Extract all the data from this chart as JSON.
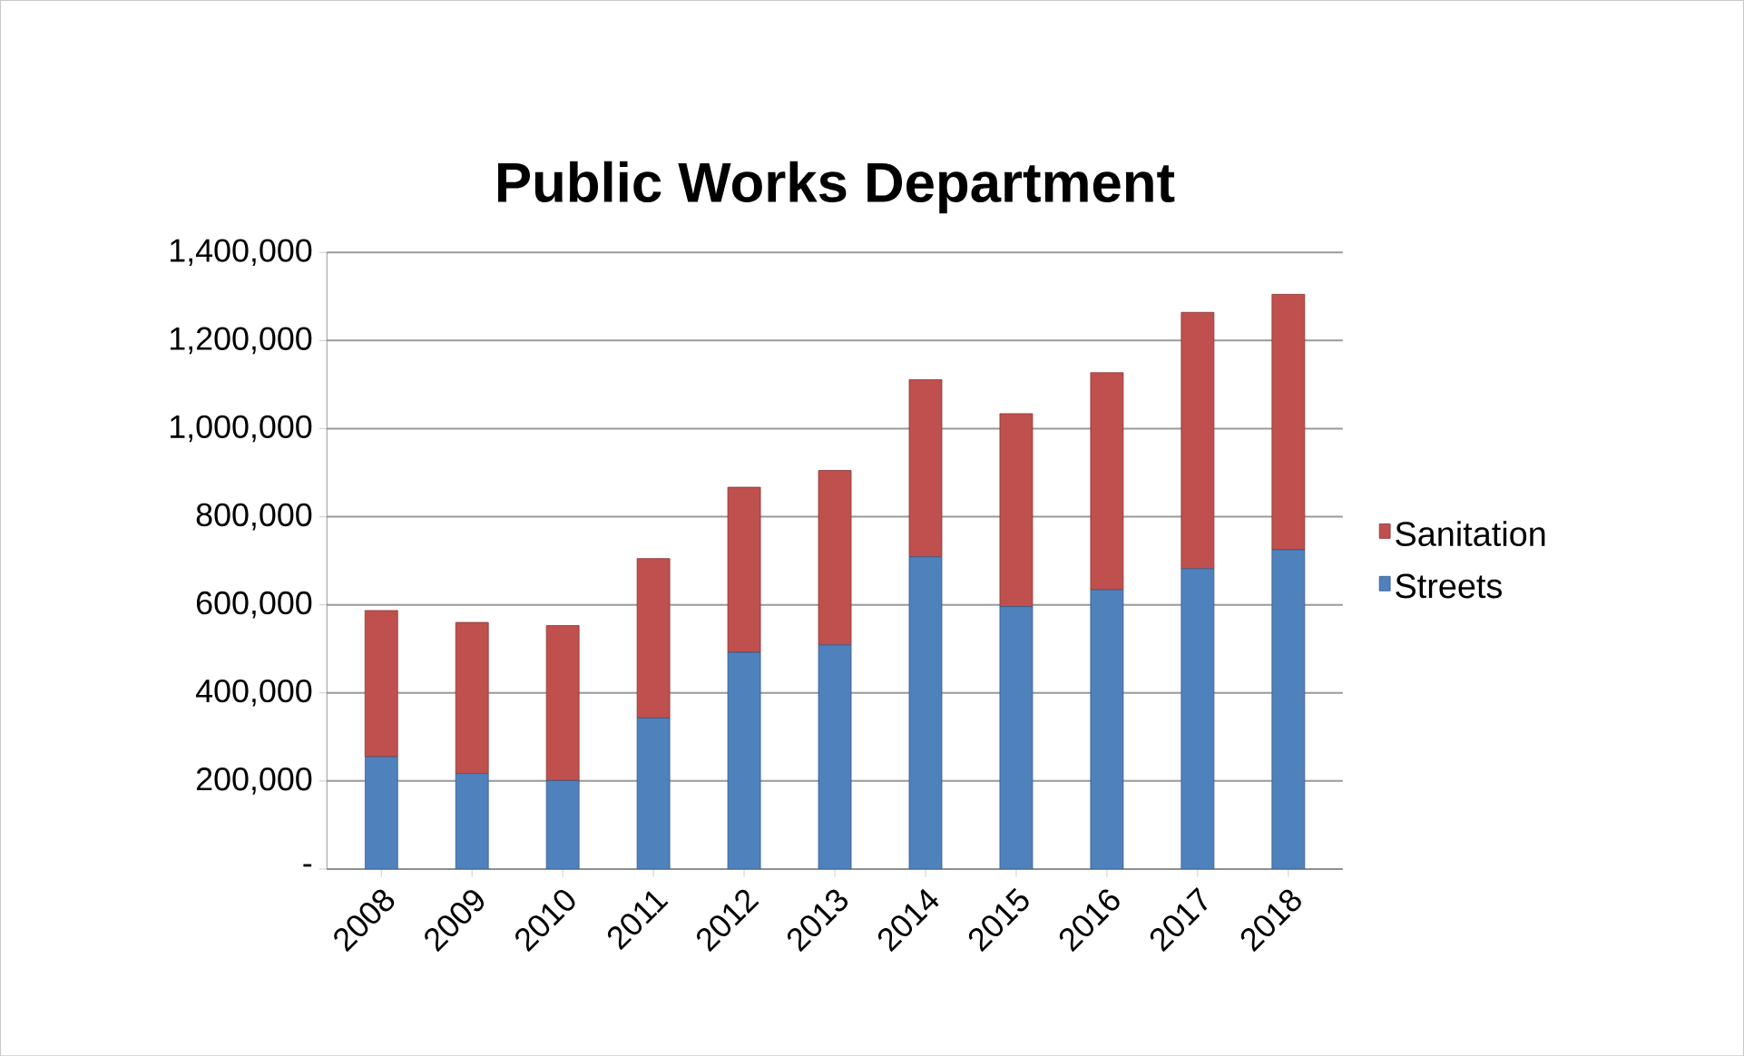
{
  "chart_data": {
    "type": "bar",
    "title": "Public Works Department",
    "stacked": true,
    "categories": [
      "2008",
      "2009",
      "2010",
      "2011",
      "2012",
      "2013",
      "2014",
      "2015",
      "2016",
      "2017",
      "2018"
    ],
    "series": [
      {
        "name": "Streets",
        "color": "#4f81bd",
        "values": [
          255000,
          217000,
          201000,
          343000,
          492000,
          509000,
          709000,
          596000,
          634000,
          682000,
          725000
        ]
      },
      {
        "name": "Sanitation",
        "color": "#c0504d",
        "values": [
          332000,
          343000,
          352000,
          362000,
          375000,
          396000,
          402000,
          438000,
          493000,
          582000,
          580000
        ]
      }
    ],
    "ylim": [
      0,
      1400000
    ],
    "yticks": [
      {
        "value": 0,
        "label": "-"
      },
      {
        "value": 200000,
        "label": "200,000"
      },
      {
        "value": 400000,
        "label": "400,000"
      },
      {
        "value": 600000,
        "label": "600,000"
      },
      {
        "value": 800000,
        "label": "800,000"
      },
      {
        "value": 1000000,
        "label": "1,000,000"
      },
      {
        "value": 1200000,
        "label": "1,200,000"
      },
      {
        "value": 1400000,
        "label": "1,400,000"
      }
    ],
    "grid": "y",
    "legend": "right"
  }
}
